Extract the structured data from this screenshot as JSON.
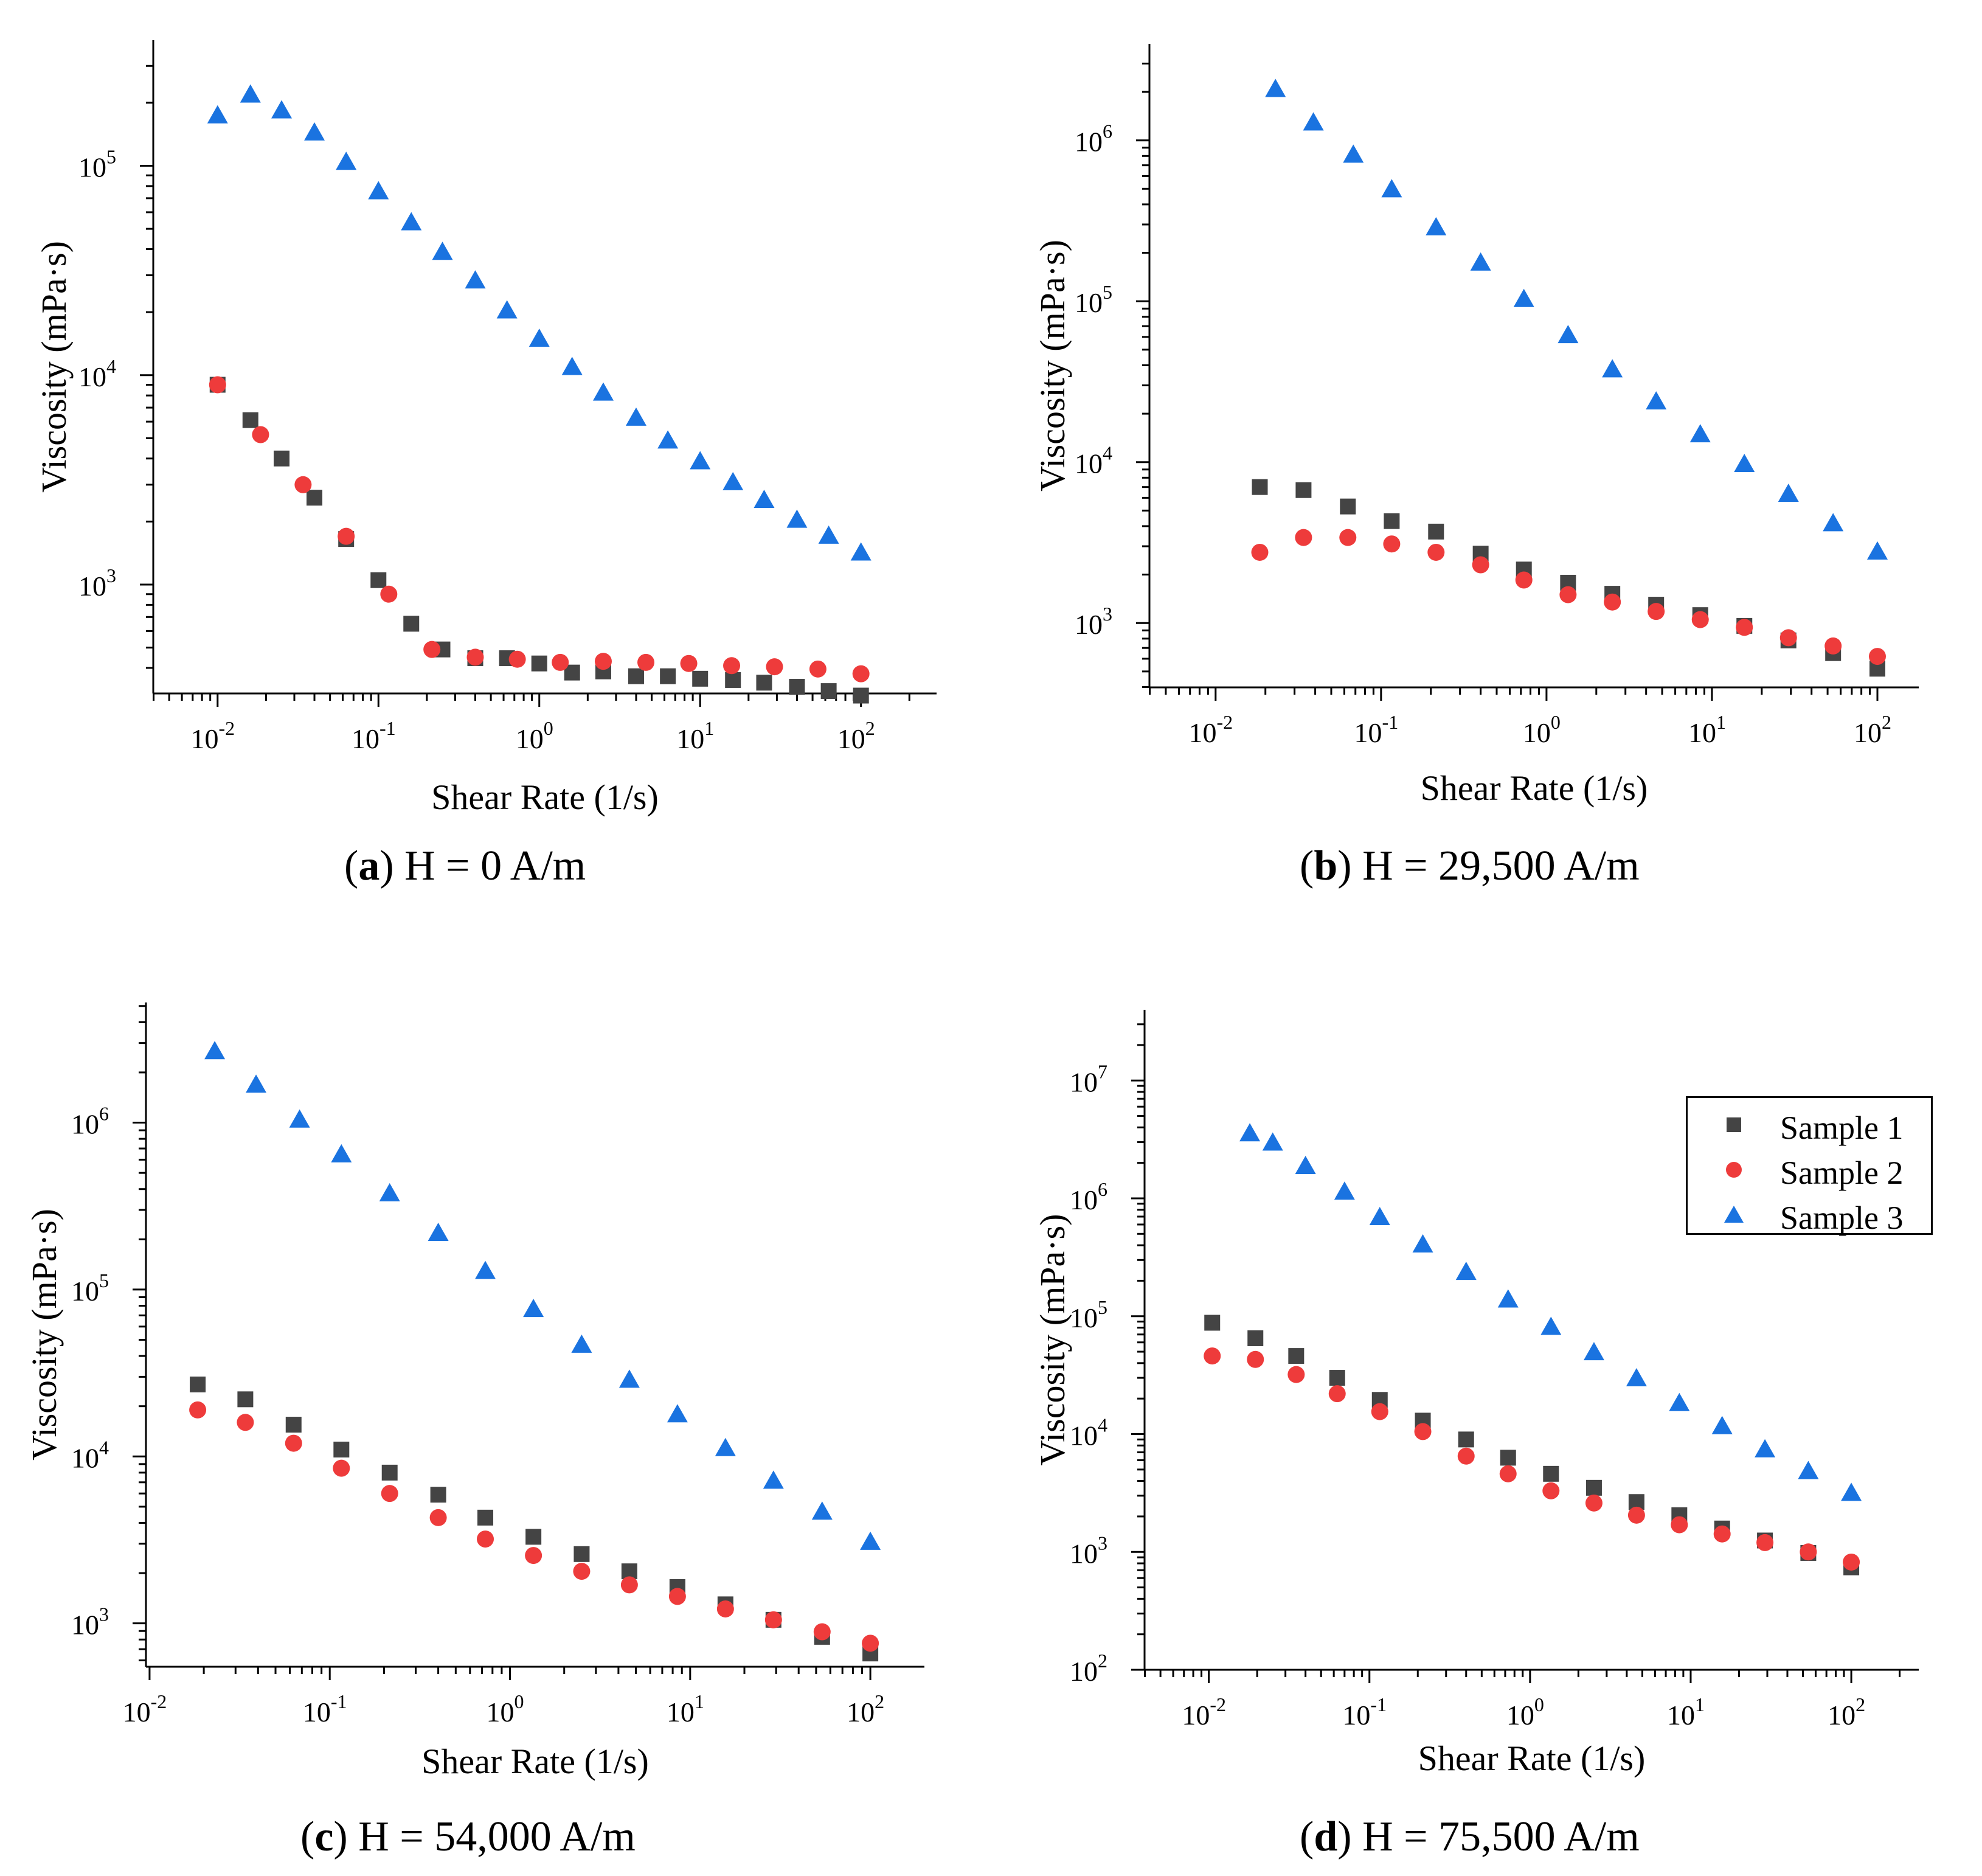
{
  "colors": {
    "sample1": "#444444",
    "sample2": "#ee3b3b",
    "sample3": "#1a73e0"
  },
  "legend": {
    "s1": "Sample 1",
    "s2": "Sample 2",
    "s3": "Sample 3"
  },
  "panels": [
    {
      "caption_letter": "a",
      "caption_text": " H = 0 A/m"
    },
    {
      "caption_letter": "b",
      "caption_text": " H = 29,500 A/m"
    },
    {
      "caption_letter": "c",
      "caption_text": " H = 54,000 A/m"
    },
    {
      "caption_letter": "d",
      "caption_text": " H = 75,500 A/m"
    }
  ],
  "chart_data": [
    {
      "type": "scatter",
      "title": "(a) H = 0 A/m",
      "xlabel": "Shear Rate (1/s)",
      "ylabel": "Viscosity (mPa·s)",
      "xscale": "log",
      "yscale": "log",
      "xlim_log10": [
        -2.4,
        2.47
      ],
      "ylim_log10": [
        2.48,
        5.6
      ],
      "xticks": [
        -2,
        -1,
        0,
        1,
        2
      ],
      "yticks": [
        3,
        4,
        5
      ],
      "series": [
        {
          "name": "Sample 1",
          "x": [
            0.01,
            0.016,
            0.025,
            0.04,
            0.063,
            0.1,
            0.16,
            0.25,
            0.4,
            0.63,
            1.0,
            1.6,
            2.5,
            4.0,
            6.3,
            10,
            16,
            25,
            40,
            63,
            100
          ],
          "y": [
            9000,
            6100,
            4000,
            2600,
            1650,
            1050,
            650,
            490,
            445,
            445,
            420,
            380,
            385,
            365,
            365,
            355,
            350,
            340,
            325,
            310,
            295
          ]
        },
        {
          "name": "Sample 2",
          "x": [
            0.01,
            0.0185,
            0.034,
            0.063,
            0.116,
            0.215,
            0.4,
            0.73,
            1.35,
            2.5,
            4.6,
            8.5,
            15.7,
            29,
            54,
            100
          ],
          "y": [
            9000,
            5200,
            3000,
            1700,
            900,
            490,
            450,
            440,
            425,
            430,
            425,
            420,
            410,
            405,
            395,
            375
          ]
        },
        {
          "name": "Sample 3",
          "x": [
            0.01,
            0.016,
            0.025,
            0.04,
            0.063,
            0.1,
            0.16,
            0.25,
            0.4,
            0.63,
            1.0,
            1.6,
            2.5,
            4.0,
            6.3,
            10,
            16,
            25,
            40,
            63,
            100
          ],
          "y": [
            175000,
            220000,
            185000,
            145000,
            105000,
            76000,
            54000,
            39000,
            28500,
            20500,
            15000,
            11000,
            8300,
            6300,
            4900,
            3900,
            3100,
            2550,
            2050,
            1720,
            1430
          ]
        }
      ]
    },
    {
      "type": "scatter",
      "title": "(b) H = 29,500 A/m",
      "xlabel": "Shear Rate (1/s)",
      "ylabel": "Viscosity (mPa·s)",
      "xscale": "log",
      "yscale": "log",
      "xlim_log10": [
        -2.4,
        2.25
      ],
      "ylim_log10": [
        2.6,
        6.6
      ],
      "xticks": [
        -2,
        -1,
        0,
        1,
        2
      ],
      "yticks": [
        3,
        4,
        5,
        6
      ],
      "series": [
        {
          "name": "Sample 1",
          "x": [
            0.0185,
            0.034,
            0.063,
            0.116,
            0.215,
            0.4,
            0.73,
            1.35,
            2.5,
            4.6,
            8.5,
            15.7,
            29,
            54,
            100
          ],
          "y": [
            7000,
            6700,
            5300,
            4300,
            3700,
            2700,
            2150,
            1780,
            1520,
            1300,
            1120,
            960,
            780,
            650,
            520
          ]
        },
        {
          "name": "Sample 2",
          "x": [
            0.0185,
            0.034,
            0.063,
            0.116,
            0.215,
            0.4,
            0.73,
            1.35,
            2.5,
            4.6,
            8.5,
            15.7,
            29,
            54,
            100
          ],
          "y": [
            2750,
            3400,
            3400,
            3100,
            2750,
            2300,
            1850,
            1500,
            1350,
            1180,
            1050,
            940,
            810,
            720,
            620
          ]
        },
        {
          "name": "Sample 3",
          "x": [
            0.023,
            0.039,
            0.068,
            0.116,
            0.215,
            0.4,
            0.73,
            1.35,
            2.5,
            4.6,
            8.5,
            15.7,
            29,
            54,
            100
          ],
          "y": [
            2100000,
            1300000,
            820000,
            500000,
            290000,
            175000,
            104000,
            62000,
            38000,
            24000,
            15000,
            9800,
            6400,
            4200,
            2800
          ]
        }
      ]
    },
    {
      "type": "scatter",
      "title": "(c) H = 54,000 A/m",
      "xlabel": "Shear Rate (1/s)",
      "ylabel": "Viscosity (mPa·s)",
      "xscale": "log",
      "yscale": "log",
      "xlim_log10": [
        -2.02,
        2.3
      ],
      "ylim_log10": [
        2.74,
        6.72
      ],
      "xticks": [
        -2,
        -1,
        0,
        1,
        2
      ],
      "yticks": [
        3,
        4,
        5,
        6
      ],
      "series": [
        {
          "name": "Sample 1",
          "x": [
            0.0185,
            0.034,
            0.063,
            0.116,
            0.215,
            0.4,
            0.73,
            1.35,
            2.5,
            4.6,
            8.5,
            15.7,
            29,
            54,
            100
          ],
          "y": [
            27000,
            22000,
            15500,
            11000,
            8000,
            5900,
            4300,
            3300,
            2600,
            2050,
            1650,
            1300,
            1050,
            830,
            660
          ]
        },
        {
          "name": "Sample 2",
          "x": [
            0.0185,
            0.034,
            0.063,
            0.116,
            0.215,
            0.4,
            0.73,
            1.35,
            2.5,
            4.6,
            8.5,
            15.7,
            29,
            54,
            100
          ],
          "y": [
            19000,
            16000,
            12000,
            8500,
            6000,
            4300,
            3200,
            2550,
            2050,
            1700,
            1450,
            1220,
            1050,
            890,
            760
          ]
        },
        {
          "name": "Sample 3",
          "x": [
            0.023,
            0.039,
            0.068,
            0.116,
            0.215,
            0.4,
            0.73,
            1.35,
            2.5,
            4.6,
            8.5,
            15.7,
            29,
            54,
            100
          ],
          "y": [
            2700000,
            1700000,
            1050000,
            650000,
            380000,
            220000,
            130000,
            77000,
            47000,
            29000,
            18000,
            11300,
            7200,
            4700,
            3100
          ]
        }
      ]
    },
    {
      "type": "scatter",
      "title": "(d) H = 75,500 A/m",
      "xlabel": "Shear Rate (1/s)",
      "ylabel": "Viscosity (mPa·s)",
      "xscale": "log",
      "yscale": "log",
      "xlim_log10": [
        -2.4,
        2.42
      ],
      "ylim_log10": [
        2.0,
        7.6
      ],
      "xticks": [
        -2,
        -1,
        0,
        1,
        2
      ],
      "yticks": [
        2,
        3,
        4,
        5,
        6,
        7
      ],
      "legend_position": "top-right",
      "series": [
        {
          "name": "Sample 1",
          "x": [
            0.0105,
            0.0195,
            0.035,
            0.063,
            0.116,
            0.215,
            0.4,
            0.73,
            1.35,
            2.5,
            4.6,
            8.5,
            15.7,
            29,
            54,
            100
          ],
          "y": [
            88000,
            65000,
            46000,
            30000,
            19500,
            13000,
            9000,
            6300,
            4600,
            3500,
            2650,
            2050,
            1580,
            1250,
            980,
            740
          ]
        },
        {
          "name": "Sample 2",
          "x": [
            0.0105,
            0.0195,
            0.035,
            0.063,
            0.116,
            0.215,
            0.4,
            0.73,
            1.35,
            2.5,
            4.6,
            8.5,
            15.7,
            29,
            54,
            100
          ],
          "y": [
            46000,
            43000,
            32000,
            22000,
            15500,
            10500,
            6500,
            4600,
            3300,
            2600,
            2050,
            1700,
            1420,
            1200,
            1000,
            820
          ]
        },
        {
          "name": "Sample 3",
          "x": [
            0.018,
            0.025,
            0.04,
            0.07,
            0.116,
            0.215,
            0.4,
            0.73,
            1.35,
            2.5,
            4.6,
            8.5,
            15.7,
            29,
            54,
            100
          ],
          "y": [
            3600000,
            3000000,
            1900000,
            1150000,
            700000,
            410000,
            240000,
            140000,
            82000,
            50000,
            30000,
            18500,
            11800,
            7500,
            4900,
            3200
          ]
        }
      ]
    }
  ]
}
